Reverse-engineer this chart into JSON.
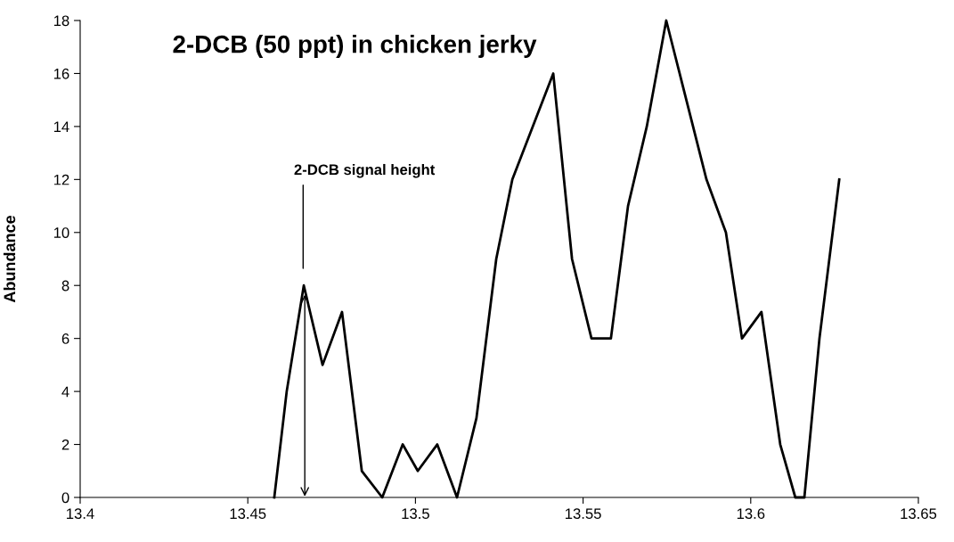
{
  "chart_data": {
    "type": "line",
    "title": "2-DCB (50 ppt) in chicken jerky",
    "ylabel": "Abundance",
    "x": [
      13.4579,
      13.4616,
      13.4667,
      13.4723,
      13.4781,
      13.484,
      13.4901,
      13.4962,
      13.5007,
      13.5065,
      13.5124,
      13.5182,
      13.5241,
      13.5289,
      13.5411,
      13.5467,
      13.5525,
      13.5583,
      13.5634,
      13.569,
      13.5748,
      13.5868,
      13.5926,
      13.5974,
      13.6032,
      13.6088,
      13.6133,
      13.616,
      13.6205,
      13.6264
    ],
    "series": [
      {
        "color": "#000000",
        "values": [
          0,
          4,
          8,
          5,
          7,
          1,
          0,
          2,
          1,
          2,
          0,
          3,
          9,
          12,
          16,
          9,
          6,
          6,
          11,
          14,
          18,
          12,
          10,
          6,
          7,
          2,
          0,
          0,
          6,
          12
        ]
      }
    ],
    "xlim": [
      13.4,
      13.65
    ],
    "xticks": [
      13.4,
      {
        "value": 13.45,
        "label": "13.45"
      },
      {
        "value": 13.5,
        "label": "13.5"
      },
      {
        "value": 13.55,
        "label": "13.55"
      },
      {
        "value": 13.6,
        "label": "13.6"
      },
      {
        "value": 13.65,
        "label": "13.65"
      }
    ],
    "ylim": [
      0,
      18
    ],
    "yticks": [
      0,
      2,
      4,
      6,
      8,
      10,
      12,
      14,
      16,
      18
    ],
    "annotations": [
      "2-DCB signal height"
    ],
    "grid": false,
    "legend": false,
    "marker": "none",
    "line_style": "solid"
  }
}
